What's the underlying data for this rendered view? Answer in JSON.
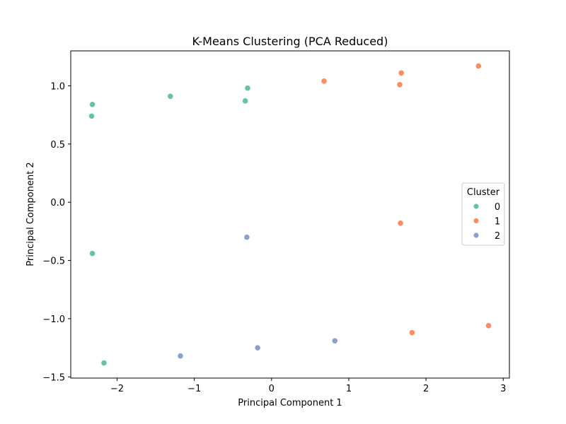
{
  "chart_data": {
    "type": "scatter",
    "title": "K-Means Clustering (PCA Reduced)",
    "xlabel": "Principal Component 1",
    "ylabel": "Principal Component 2",
    "xlim": [
      -2.6,
      3.08
    ],
    "ylim": [
      -1.51,
      1.3
    ],
    "xticks": [
      -2,
      -1,
      0,
      1,
      2,
      3
    ],
    "yticks": [
      -1.5,
      -1.0,
      -0.5,
      0.0,
      0.5,
      1.0
    ],
    "xtick_labels": [
      "−2",
      "−1",
      "0",
      "1",
      "2",
      "3"
    ],
    "ytick_labels": [
      "−1.5",
      "−1.0",
      "−0.5",
      "0.0",
      "0.5",
      "1.0"
    ],
    "grid": false,
    "legend": {
      "title": "Cluster",
      "placement": "center-right"
    },
    "series": [
      {
        "name": "0",
        "color": "#66c2a5",
        "points": [
          [
            -2.32,
            0.84
          ],
          [
            -2.33,
            0.74
          ],
          [
            -1.31,
            0.91
          ],
          [
            -0.31,
            0.98
          ],
          [
            -0.34,
            0.87
          ],
          [
            -2.32,
            -0.44
          ],
          [
            -2.17,
            -1.38
          ]
        ]
      },
      {
        "name": "1",
        "color": "#fc8d62",
        "points": [
          [
            0.68,
            1.04
          ],
          [
            1.68,
            1.11
          ],
          [
            1.66,
            1.01
          ],
          [
            2.68,
            1.17
          ],
          [
            1.67,
            -0.18
          ],
          [
            1.82,
            -1.12
          ],
          [
            2.81,
            -1.06
          ]
        ]
      },
      {
        "name": "2",
        "color": "#8da0cb",
        "points": [
          [
            -0.32,
            -0.3
          ],
          [
            -0.18,
            -1.25
          ],
          [
            -1.18,
            -1.32
          ],
          [
            0.82,
            -1.19
          ]
        ]
      }
    ]
  }
}
